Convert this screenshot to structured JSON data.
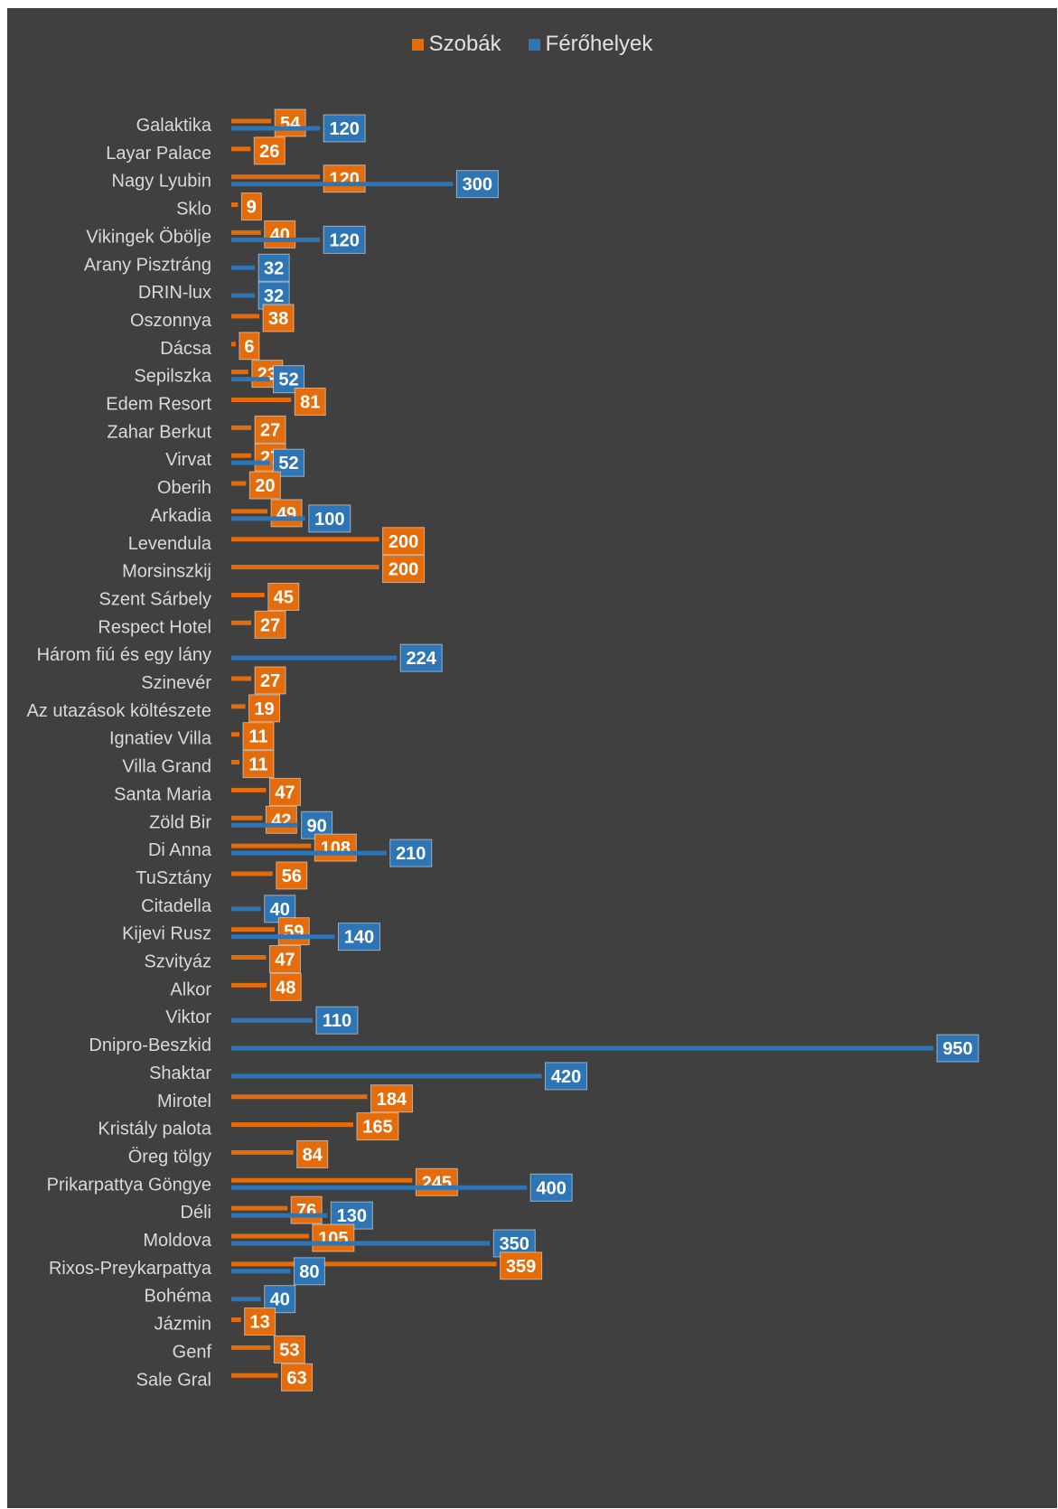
{
  "colors": {
    "rooms": "#e46c0a",
    "beds": "#2e75b6",
    "background": "#404040"
  },
  "legend": {
    "rooms_label": "Szobák",
    "beds_label": "Férőhelyek"
  },
  "chart_data": {
    "type": "bar",
    "orientation": "horizontal",
    "legend_position": "top",
    "grid": false,
    "xlim": [
      0,
      950
    ],
    "categories": [
      "Galaktika",
      "Layar Palace",
      "Nagy Lyubin",
      "Sklo",
      "Vikingek Öbölje",
      "Arany Pisztráng",
      "DRIN-lux",
      "Oszonnya",
      "Dácsa",
      "Sepilszka",
      "Edem Resort",
      "Zahar Berkut",
      "Virvat",
      "Oberih",
      "Arkadia",
      "Levendula",
      "Morsinszkij",
      "Szent Sárbely",
      "Respect Hotel",
      "Három fiú és egy lány",
      "Szinevér",
      "Az utazások költészete",
      "Ignatiev Villa",
      "Villa Grand",
      "Santa Maria",
      "Zöld Bir",
      "Di Anna",
      "TuSztány",
      "Citadella",
      "Kijevi Rusz",
      "Szvityáz",
      "Alkor",
      "Viktor",
      "Dnipro-Beszkid",
      "Shaktar",
      "Mirotel",
      "Kristály palota",
      "Öreg tölgy",
      "Prikarpattya Göngye",
      "Déli",
      "Moldova",
      "Rixos-Preykarpattya",
      "Bohéma",
      "Jázmin",
      "Genf",
      "Sale Gral"
    ],
    "series": [
      {
        "name": "Szobák",
        "values": [
          54,
          26,
          120,
          9,
          40,
          null,
          null,
          38,
          6,
          23,
          81,
          27,
          27,
          20,
          49,
          200,
          200,
          45,
          27,
          null,
          27,
          19,
          11,
          11,
          47,
          42,
          108,
          56,
          null,
          59,
          47,
          48,
          null,
          null,
          null,
          184,
          165,
          84,
          245,
          76,
          105,
          359,
          null,
          13,
          53,
          63
        ]
      },
      {
        "name": "Férőhelyek",
        "values": [
          120,
          null,
          300,
          null,
          120,
          32,
          32,
          null,
          null,
          52,
          null,
          null,
          52,
          null,
          100,
          null,
          null,
          null,
          null,
          224,
          null,
          null,
          null,
          null,
          null,
          90,
          210,
          null,
          40,
          140,
          null,
          null,
          110,
          950,
          420,
          null,
          null,
          null,
          400,
          130,
          350,
          80,
          40,
          null,
          null,
          null
        ]
      }
    ]
  }
}
